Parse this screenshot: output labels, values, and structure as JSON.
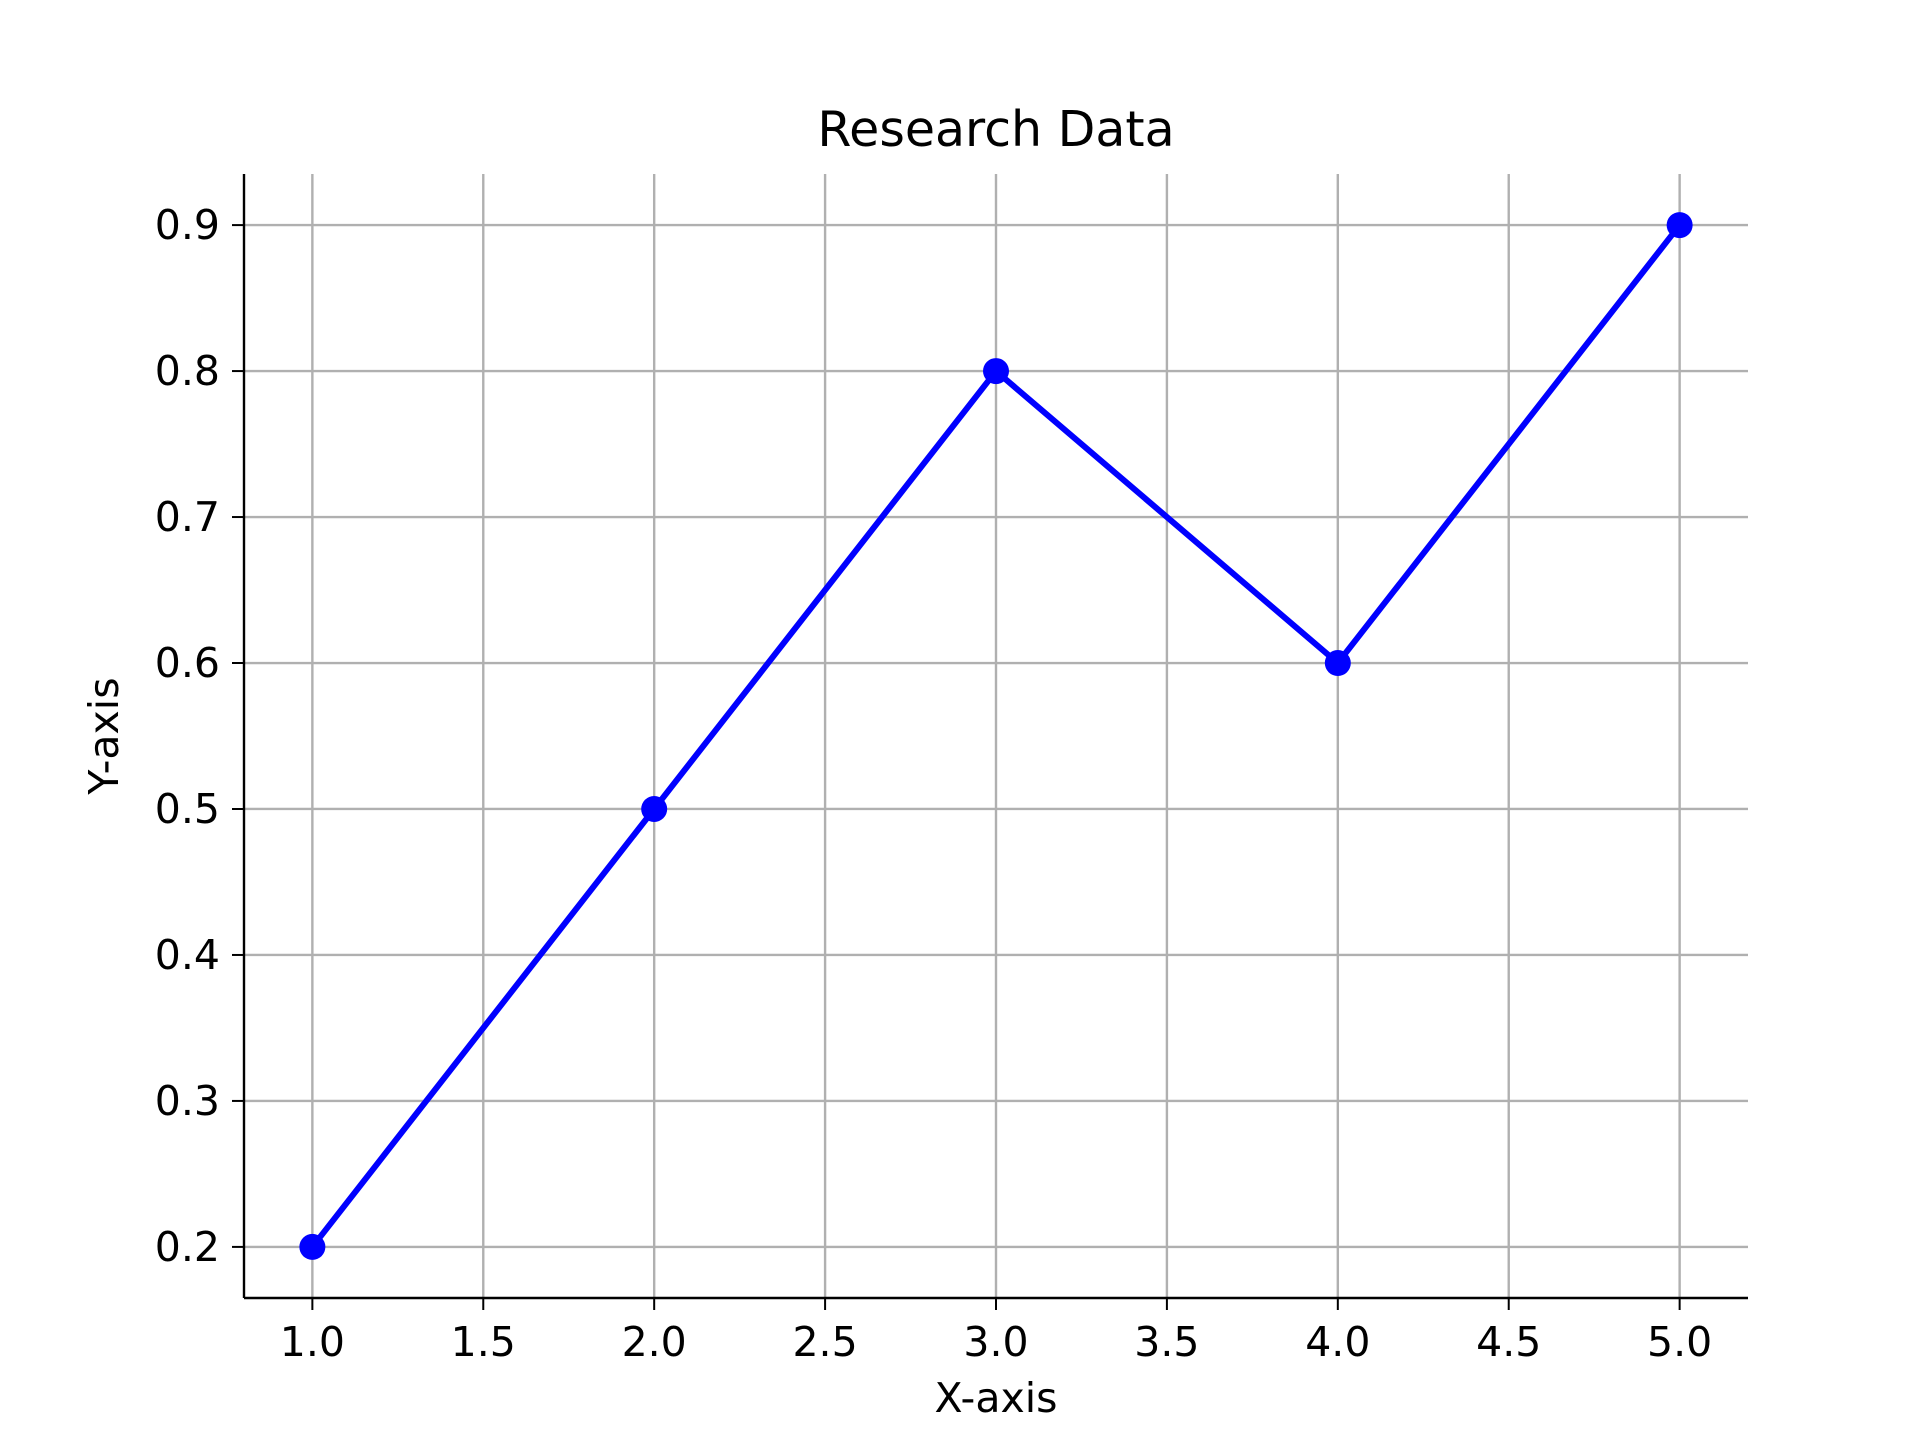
{
  "chart_data": {
    "type": "line",
    "title": "Research Data",
    "xlabel": "X-axis",
    "ylabel": "Y-axis",
    "x": [
      1,
      2,
      3,
      4,
      5
    ],
    "series": [
      {
        "values": [
          0.2,
          0.5,
          0.8,
          0.6,
          0.9
        ],
        "color": "#0000ff",
        "marker": "circle"
      }
    ],
    "xlim": [
      0.8,
      5.2
    ],
    "ylim": [
      0.165,
      0.935
    ],
    "x_ticks": [
      "1.0",
      "1.5",
      "2.0",
      "2.5",
      "3.0",
      "3.5",
      "4.0",
      "4.5",
      "5.0"
    ],
    "y_ticks": [
      "0.2",
      "0.3",
      "0.4",
      "0.5",
      "0.6",
      "0.7",
      "0.8",
      "0.9"
    ],
    "grid": true,
    "grid_color": "#b0b0b0",
    "spines": "left-bottom"
  }
}
